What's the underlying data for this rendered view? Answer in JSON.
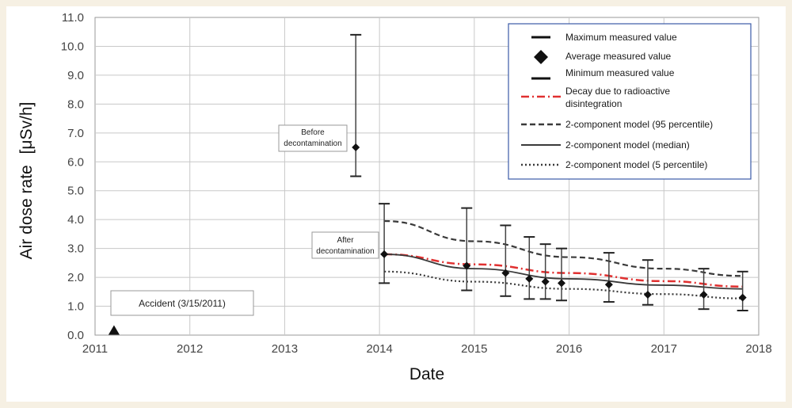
{
  "chart_data": {
    "type": "scatter",
    "xlabel": "Date",
    "ylabel": "Air dose rate",
    "ylabel_unit": "[μSv/h]",
    "xlim": [
      2011,
      2018
    ],
    "ylim": [
      0,
      11
    ],
    "x_ticks": [
      "2011",
      "2012",
      "2013",
      "2014",
      "2015",
      "2016",
      "2017",
      "2018"
    ],
    "y_ticks": [
      "0.0",
      "1.0",
      "2.0",
      "3.0",
      "4.0",
      "5.0",
      "6.0",
      "7.0",
      "8.0",
      "9.0",
      "10.0",
      "11.0"
    ],
    "grid": true,
    "legend_position": "top-right",
    "legend": [
      "Maximum measured value",
      "Average measured value",
      "Minimum measured value",
      "Decay due to radioactive disintegration",
      "2-component model (95 percentile)",
      "2-component model (median)",
      "2-component model (5 percentile)"
    ],
    "accident": {
      "x": 2011.2,
      "y": 0.15,
      "label": "Accident (3/15/2011)"
    },
    "measurements": [
      {
        "x": 2013.75,
        "avg": 6.5,
        "min": 5.5,
        "max": 10.4
      },
      {
        "x": 2014.05,
        "avg": 2.8,
        "min": 1.8,
        "max": 4.55
      },
      {
        "x": 2014.92,
        "avg": 2.4,
        "min": 1.55,
        "max": 4.4
      },
      {
        "x": 2015.33,
        "avg": 2.15,
        "min": 1.35,
        "max": 3.8
      },
      {
        "x": 2015.58,
        "avg": 1.95,
        "min": 1.25,
        "max": 3.4
      },
      {
        "x": 2015.75,
        "avg": 1.85,
        "min": 1.25,
        "max": 3.15
      },
      {
        "x": 2015.92,
        "avg": 1.8,
        "min": 1.2,
        "max": 3.0
      },
      {
        "x": 2016.42,
        "avg": 1.75,
        "min": 1.15,
        "max": 2.85
      },
      {
        "x": 2016.83,
        "avg": 1.4,
        "min": 1.05,
        "max": 2.6
      },
      {
        "x": 2017.42,
        "avg": 1.4,
        "min": 0.9,
        "max": 2.3
      },
      {
        "x": 2017.83,
        "avg": 1.3,
        "min": 0.85,
        "max": 2.2
      }
    ],
    "series": [
      {
        "name": "Decay due to radioactive disintegration",
        "x": [
          2014.05,
          2015.0,
          2016.0,
          2017.0,
          2017.83
        ],
        "values": [
          2.8,
          2.45,
          2.15,
          1.87,
          1.68
        ]
      },
      {
        "name": "2-component model (95 percentile)",
        "x": [
          2014.05,
          2015.0,
          2016.0,
          2017.0,
          2017.83
        ],
        "values": [
          3.95,
          3.25,
          2.7,
          2.3,
          2.05
        ]
      },
      {
        "name": "2-component model (median)",
        "x": [
          2014.05,
          2015.0,
          2016.0,
          2017.0,
          2017.83
        ],
        "values": [
          2.8,
          2.3,
          1.95,
          1.73,
          1.6
        ]
      },
      {
        "name": "2-component model (5 percentile)",
        "x": [
          2014.05,
          2015.0,
          2016.0,
          2017.0,
          2017.83
        ],
        "values": [
          2.2,
          1.85,
          1.6,
          1.42,
          1.27
        ]
      }
    ],
    "annotations": [
      {
        "label": "Before decontamination",
        "lines": [
          "Before",
          "decontamination"
        ]
      },
      {
        "label": "After decontamination",
        "lines": [
          "After",
          "decontamination"
        ]
      }
    ],
    "colors": {
      "decay": "#e03030",
      "model": "#3a3a3a",
      "grid": "#c8c8c8",
      "legend_border": "#3b5ba8"
    }
  }
}
